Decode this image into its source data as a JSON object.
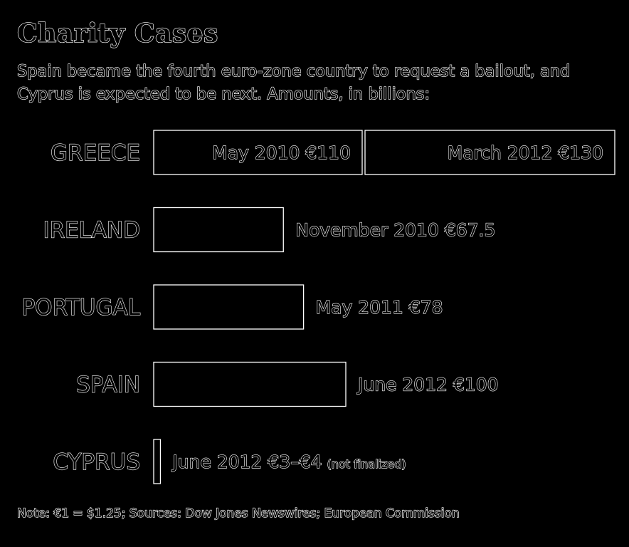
{
  "title": "Charity Cases",
  "subtitle": "Spain became the fourth euro-zone country to request a bailout, and Cyprus is expected to be next. Amounts, in billions:",
  "note": "Note: €1 = $1.25; Sources: Dow Jones Newswires; European Commission",
  "colors": {
    "background": "#000000",
    "outline": "#ffffff"
  },
  "chart_data": {
    "type": "bar",
    "orientation": "horizontal",
    "stacked": true,
    "unit": "€ billions",
    "categories": [
      "GREECE",
      "IRELAND",
      "PORTUGAL",
      "SPAIN",
      "CYPRUS"
    ],
    "rows": [
      {
        "country": "GREECE",
        "segments": [
          {
            "label": "May 2010 €110",
            "value": 110,
            "label_inside": true
          },
          {
            "label": "March 2012 €130",
            "value": 130,
            "label_inside": true
          }
        ]
      },
      {
        "country": "IRELAND",
        "segments": [
          {
            "label": "November 2010 €67.5",
            "value": 67.5
          }
        ]
      },
      {
        "country": "PORTUGAL",
        "segments": [
          {
            "label": "May 2011 €78",
            "value": 78
          }
        ]
      },
      {
        "country": "SPAIN",
        "segments": [
          {
            "label": "June 2012 €100",
            "value": 100
          }
        ]
      },
      {
        "country": "CYPRUS",
        "segments": [
          {
            "label": "June 2012 €3–€4",
            "value": 3.5,
            "note": "(not finalized)"
          }
        ]
      }
    ]
  }
}
